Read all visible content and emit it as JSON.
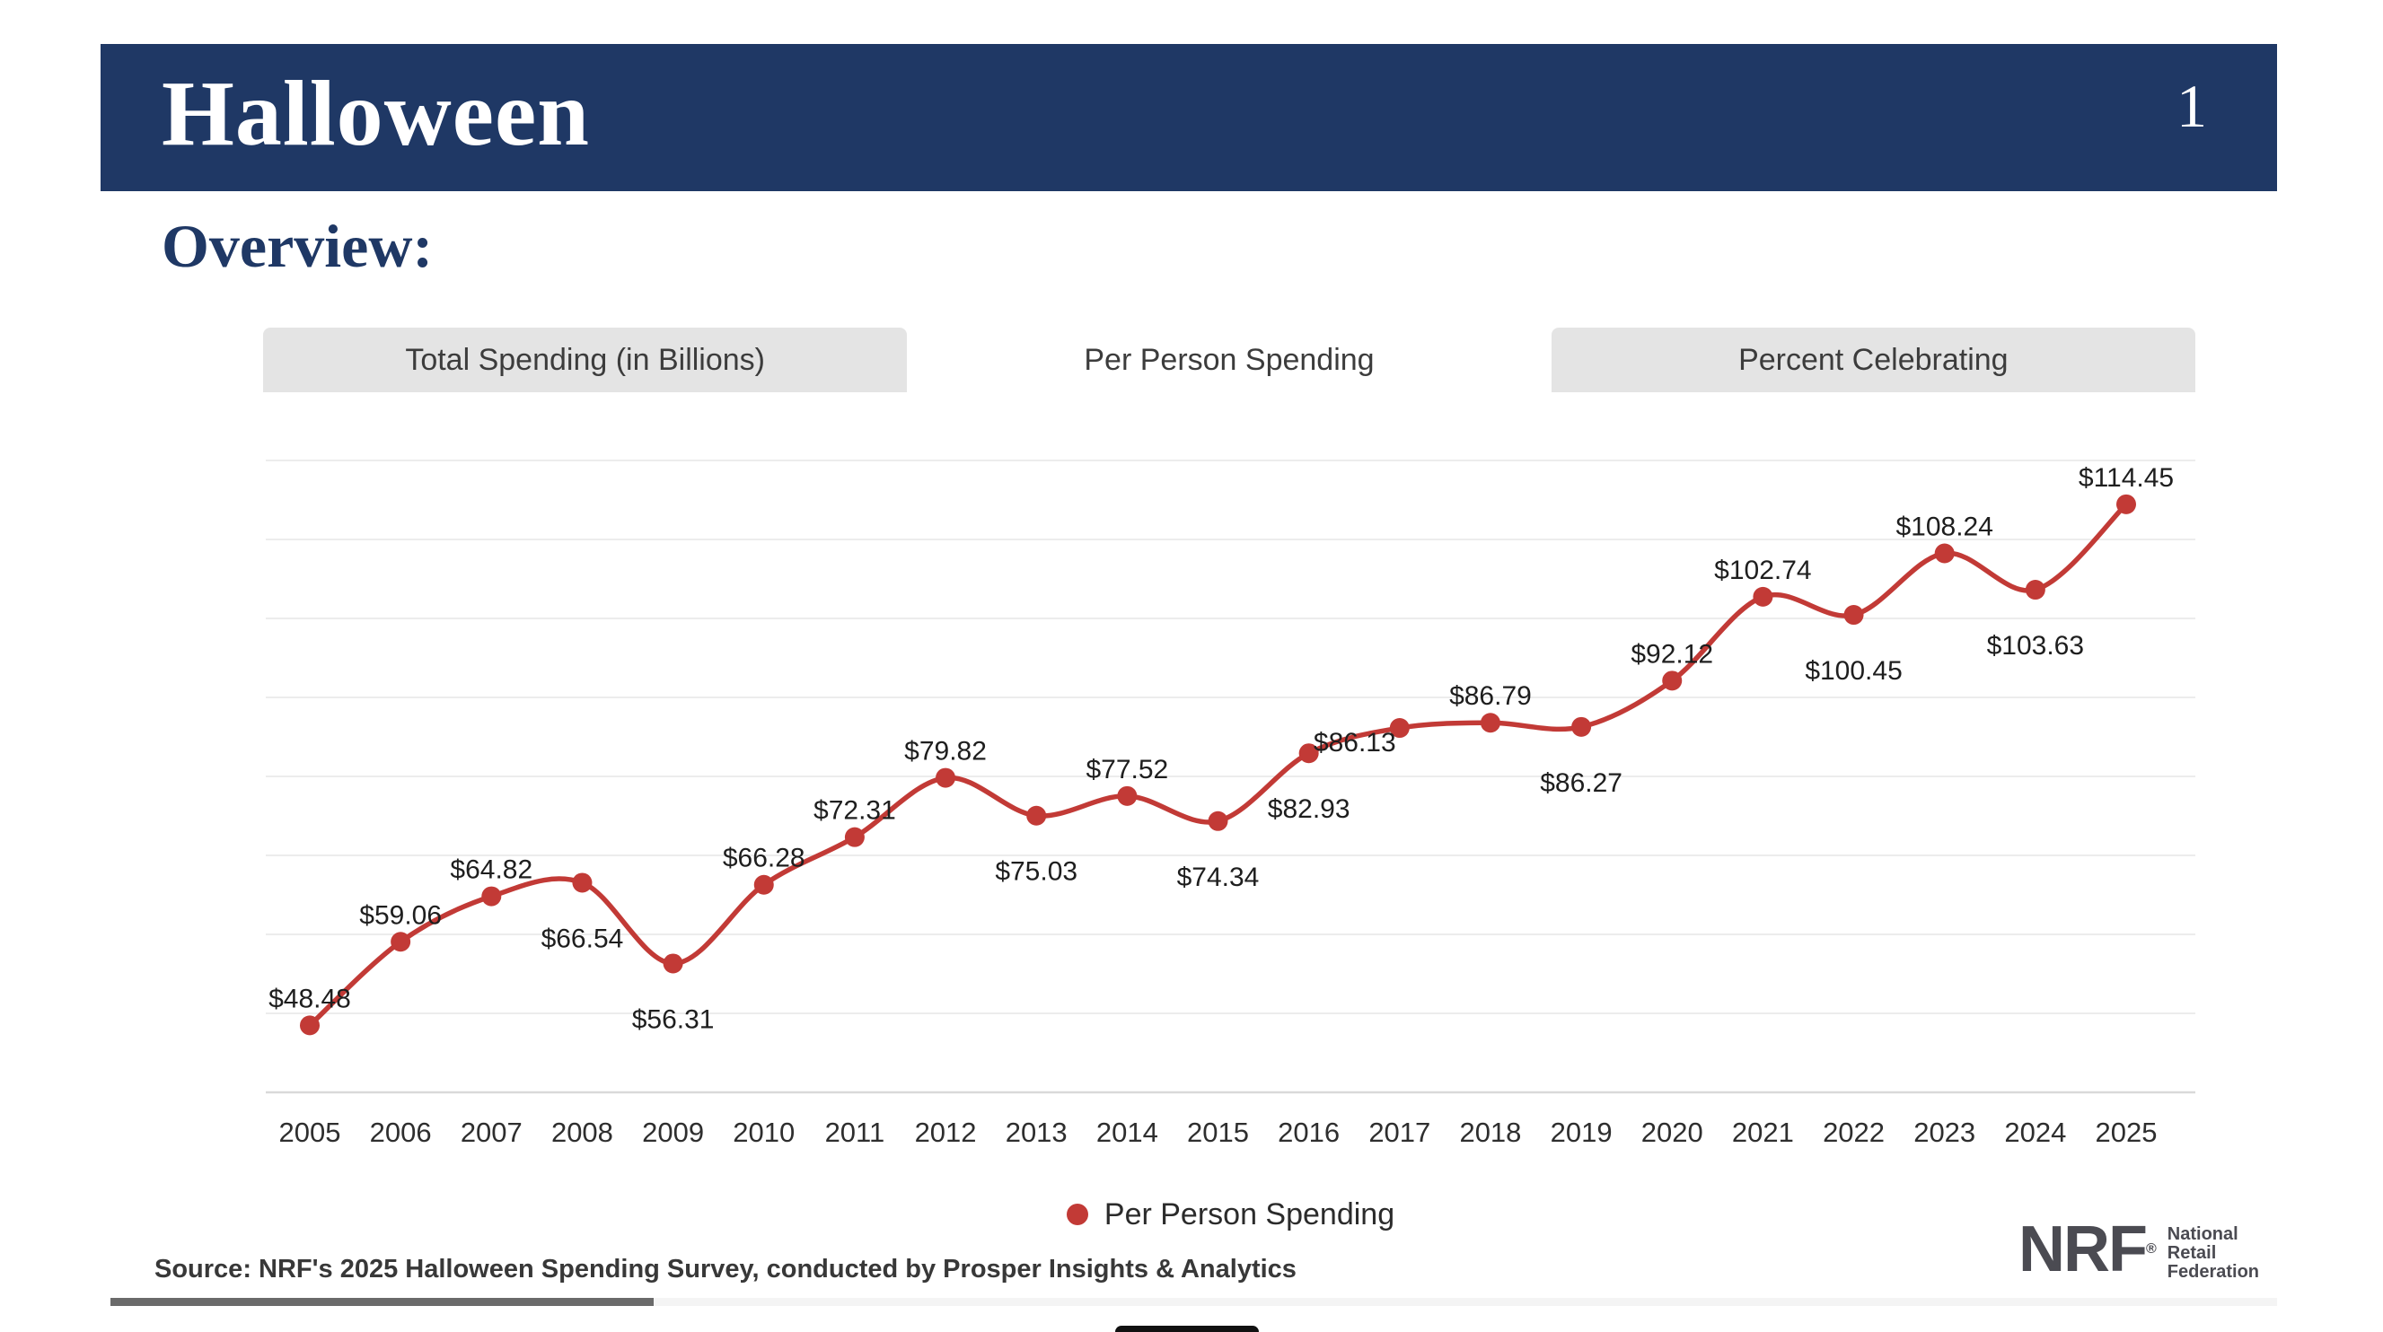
{
  "header": {
    "title": "Halloween",
    "page_number": "1"
  },
  "section": {
    "heading": "Overview:"
  },
  "tabs": [
    {
      "label": "Total Spending (in Billions)",
      "active": false
    },
    {
      "label": "Per Person Spending",
      "active": true
    },
    {
      "label": "Percent Celebrating",
      "active": false
    }
  ],
  "chart_data": {
    "type": "line",
    "categories": [
      2005,
      2006,
      2007,
      2008,
      2009,
      2010,
      2011,
      2012,
      2013,
      2014,
      2015,
      2016,
      2017,
      2018,
      2019,
      2020,
      2021,
      2022,
      2023,
      2024,
      2025
    ],
    "series": [
      {
        "name": "Per Person Spending",
        "values": [
          48.48,
          59.06,
          64.82,
          66.54,
          56.31,
          66.28,
          72.31,
          79.82,
          75.03,
          77.52,
          74.34,
          82.93,
          86.13,
          86.79,
          86.27,
          92.12,
          102.74,
          100.45,
          108.24,
          103.63,
          114.45
        ]
      }
    ],
    "value_prefix": "$",
    "label_positions": [
      "above",
      "above",
      "above",
      "below",
      "below",
      "above",
      "above",
      "above",
      "below",
      "above",
      "below",
      "below",
      "left",
      "above",
      "below",
      "above",
      "above",
      "below",
      "above",
      "below",
      "above"
    ],
    "ylim": [
      40,
      120
    ],
    "grid": true,
    "legend_position": "bottom"
  },
  "legend": {
    "label": "Per Person Spending",
    "dot_color": "#C23A36"
  },
  "footer": {
    "source": "Source: NRF's 2025 Halloween Spending Survey, conducted by Prosper Insights & Analytics"
  },
  "logo": {
    "abbr": "NRF",
    "registered": "®",
    "lines": [
      "National",
      "Retail",
      "Federation"
    ]
  },
  "colors": {
    "header_bg": "#1F3865",
    "accent_red": "#C23A36",
    "tab_bg": "#E4E4E4",
    "grid": "#ECECEC",
    "axis": "#D9D9D9",
    "label_text": "#1E1E1E",
    "year_text": "#2E2E2E"
  }
}
